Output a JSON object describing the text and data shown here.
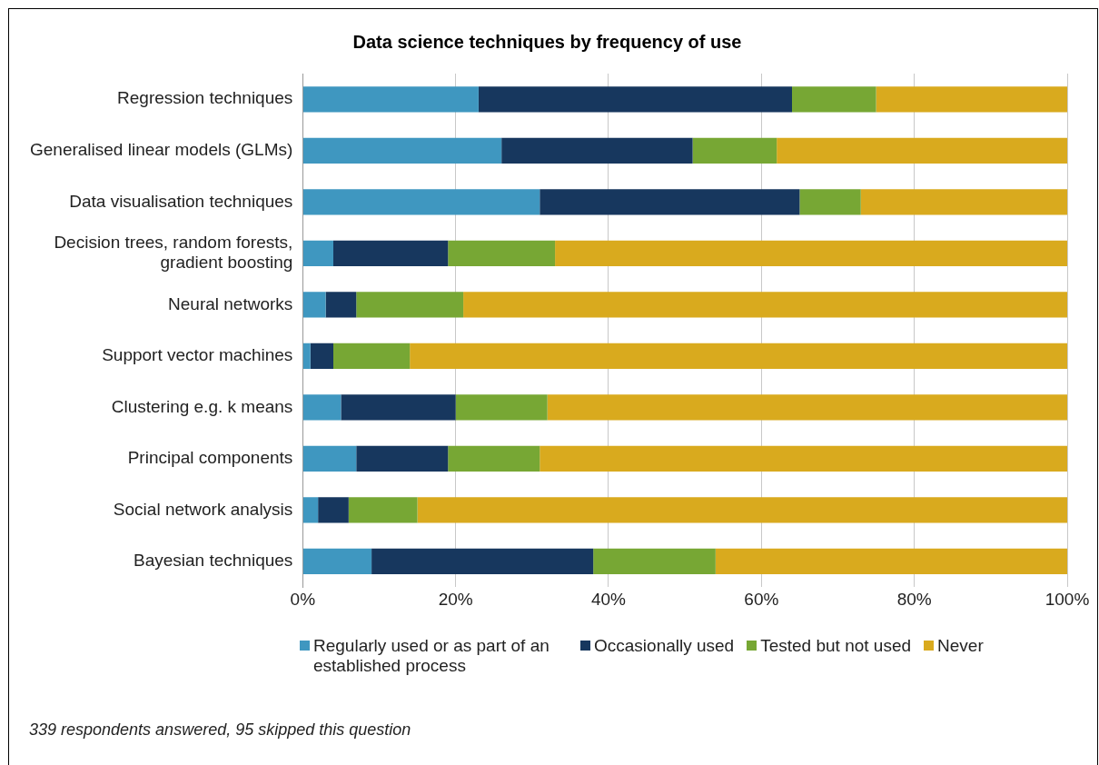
{
  "chart_data": {
    "type": "bar",
    "orientation": "horizontal",
    "stacked": true,
    "title": "Data science techniques by frequency of use",
    "categories": [
      "Regression techniques",
      "Generalised linear models (GLMs)",
      "Data visualisation techniques",
      "Decision trees, random forests, gradient boosting",
      "Neural networks",
      "Support vector machines",
      "Clustering e.g. k means",
      "Principal components",
      "Social network analysis",
      "Bayesian techniques"
    ],
    "series": [
      {
        "name": "Regularly used or as part of an established process",
        "color": "#3f97c0",
        "values": [
          23,
          26,
          31,
          4,
          3,
          1,
          5,
          7,
          2,
          9
        ]
      },
      {
        "name": "Occasionally used",
        "color": "#17375e",
        "values": [
          41,
          25,
          34,
          15,
          4,
          3,
          15,
          12,
          4,
          29
        ]
      },
      {
        "name": "Tested but not used",
        "color": "#77a734",
        "values": [
          11,
          11,
          8,
          14,
          14,
          10,
          12,
          12,
          9,
          16
        ]
      },
      {
        "name": "Never",
        "color": "#d9aa1e",
        "values": [
          25,
          38,
          27,
          67,
          79,
          86,
          68,
          69,
          85,
          46
        ]
      }
    ],
    "xlim": [
      0,
      100
    ],
    "xticks": [
      {
        "value": 0,
        "label": "0%"
      },
      {
        "value": 20,
        "label": "20%"
      },
      {
        "value": 40,
        "label": "40%"
      },
      {
        "value": 60,
        "label": "60%"
      },
      {
        "value": 80,
        "label": "80%"
      },
      {
        "value": 100,
        "label": "100%"
      }
    ],
    "grid": "x",
    "legend": "bottom",
    "annotations": [
      "339 respondents answered, 95 skipped this question"
    ]
  }
}
